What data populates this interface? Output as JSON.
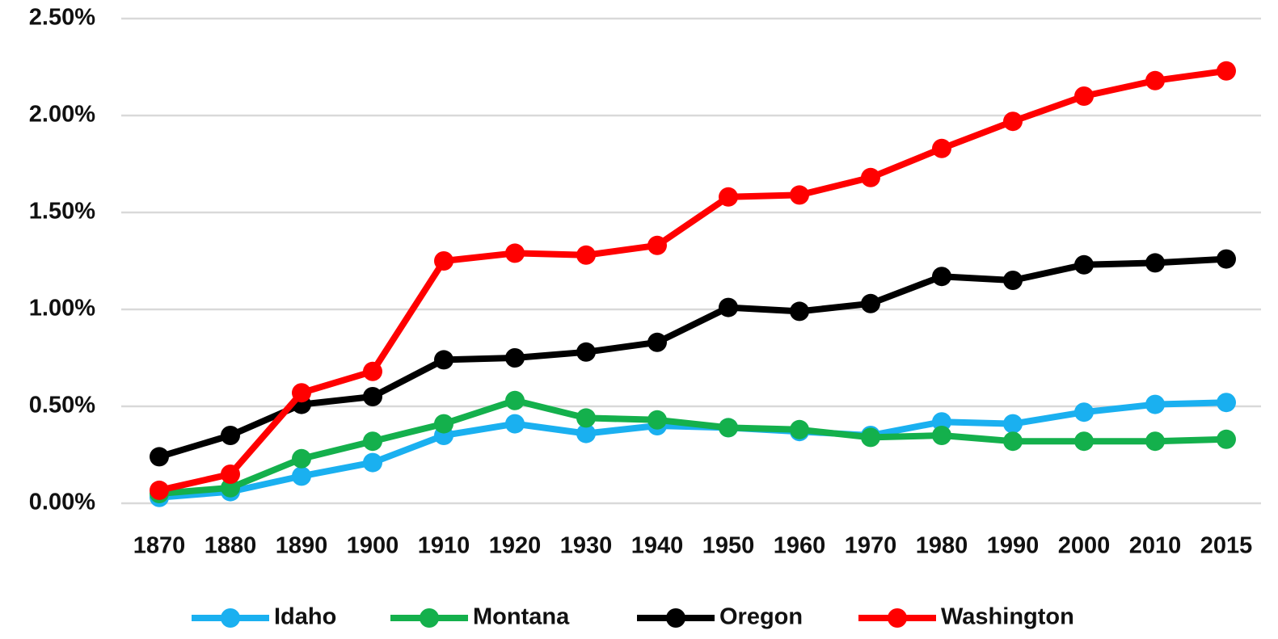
{
  "chart_data": {
    "type": "line",
    "categories": [
      "1870",
      "1880",
      "1890",
      "1900",
      "1910",
      "1920",
      "1930",
      "1940",
      "1950",
      "1960",
      "1970",
      "1980",
      "1990",
      "2000",
      "2010",
      "2015"
    ],
    "series": [
      {
        "name": "Idaho",
        "color": "#1ab0f0",
        "values": [
          0.03,
          0.06,
          0.14,
          0.21,
          0.35,
          0.41,
          0.36,
          0.4,
          0.39,
          0.37,
          0.35,
          0.42,
          0.41,
          0.47,
          0.51,
          0.52
        ]
      },
      {
        "name": "Montana",
        "color": "#14b04c",
        "values": [
          0.05,
          0.08,
          0.23,
          0.32,
          0.41,
          0.53,
          0.44,
          0.43,
          0.39,
          0.38,
          0.34,
          0.35,
          0.32,
          0.32,
          0.32,
          0.33
        ]
      },
      {
        "name": "Oregon",
        "color": "#000000",
        "values": [
          0.24,
          0.35,
          0.51,
          0.55,
          0.74,
          0.75,
          0.78,
          0.83,
          1.01,
          0.99,
          1.03,
          1.17,
          1.15,
          1.23,
          1.24,
          1.26
        ]
      },
      {
        "name": "Washington",
        "color": "#ff0000",
        "values": [
          0.067,
          0.15,
          0.57,
          0.68,
          1.25,
          1.29,
          1.28,
          1.33,
          1.58,
          1.59,
          1.68,
          1.83,
          1.97,
          2.1,
          2.18,
          2.23
        ]
      }
    ],
    "ylim": [
      0,
      2.5
    ],
    "yticks": [
      {
        "value": 0,
        "label": "0.00%"
      },
      {
        "value": 0.5,
        "label": "0.50%"
      },
      {
        "value": 1,
        "label": "1.00%"
      },
      {
        "value": 1.5,
        "label": "1.50%"
      },
      {
        "value": 2,
        "label": "2.00%"
      },
      {
        "value": 2.5,
        "label": "2.50%"
      }
    ],
    "grid": true,
    "legend": "bottom"
  }
}
